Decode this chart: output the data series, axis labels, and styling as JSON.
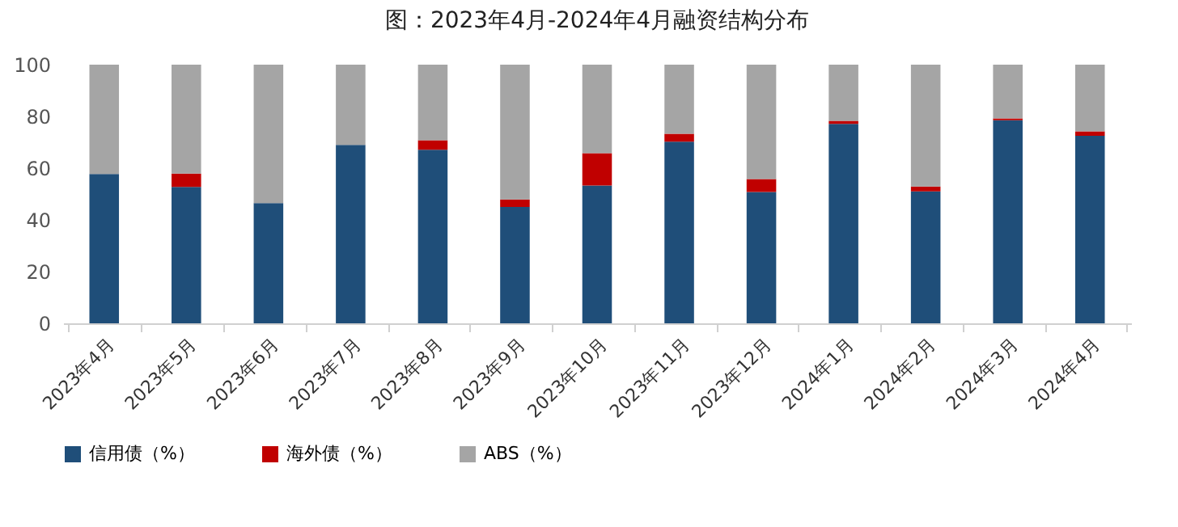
{
  "chart_data": {
    "type": "bar",
    "title": "图：2023年4月-2024年4月融资结构分布",
    "stacked": true,
    "categories": [
      "2023年4月",
      "2023年5月",
      "2023年6月",
      "2023年7月",
      "2023年8月",
      "2023年9月",
      "2023年10月",
      "2023年11月",
      "2023年12月",
      "2024年1月",
      "2024年2月",
      "2024年3月",
      "2024年4月"
    ],
    "series": [
      {
        "name": "信用债（%）",
        "color": "#1f4e79",
        "values": [
          57.7,
          52.7,
          46.5,
          69.0,
          67.1,
          45.0,
          53.3,
          70.2,
          50.8,
          77.1,
          51.0,
          78.5,
          72.5
        ]
      },
      {
        "name": "海外债（%）",
        "color": "#c00000",
        "values": [
          0,
          5.2,
          0,
          0,
          3.7,
          2.9,
          12.5,
          3.1,
          5.0,
          1.2,
          1.9,
          0.7,
          1.7
        ]
      },
      {
        "name": "ABS（%）",
        "color": "#a5a5a5",
        "values": [
          42.3,
          42.1,
          53.5,
          31.0,
          29.2,
          52.1,
          34.2,
          26.7,
          44.2,
          21.7,
          47.1,
          20.8,
          25.8
        ]
      }
    ],
    "ylim": [
      0,
      100
    ],
    "yticks": [
      0,
      20,
      40,
      60,
      80,
      100
    ],
    "grid": false,
    "legend": "bottom"
  }
}
